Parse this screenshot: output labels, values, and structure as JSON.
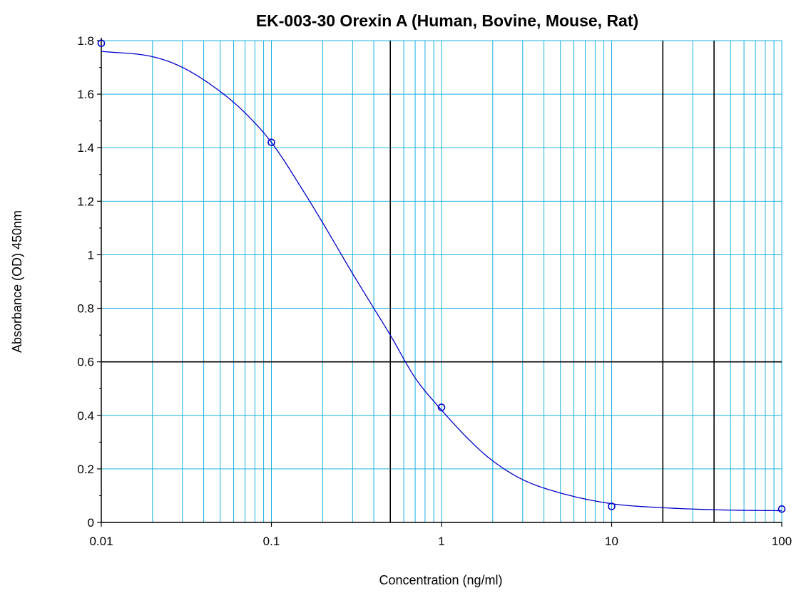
{
  "chart_data": {
    "type": "scatter",
    "title": "EK-003-30 Orexin A (Human, Bovine, Mouse, Rat)",
    "xlabel": "Concentration (ng/ml)",
    "ylabel": "Absorbance (OD) 450nm",
    "xscale": "log",
    "xlim": [
      0.01,
      100
    ],
    "ylim": [
      0,
      1.8
    ],
    "grid": true,
    "x_tick_labels": [
      "0.01",
      "0.1",
      "1",
      "10",
      "100"
    ],
    "y_tick_labels": [
      "0",
      "0.2",
      "0.4",
      "0.6",
      "0.8",
      "1",
      "1.2",
      "1.4",
      "1.6",
      "1.8"
    ],
    "reference_lines": {
      "y": [
        0.6
      ],
      "x": [
        0.5,
        20,
        40
      ]
    },
    "series": [
      {
        "kind": "points",
        "x": [
          0.01,
          0.1,
          1,
          10,
          100
        ],
        "y": [
          1.79,
          1.42,
          0.43,
          0.06,
          0.05
        ]
      },
      {
        "kind": "fit-curve",
        "x": [
          0.01,
          0.02,
          0.03,
          0.05,
          0.07,
          0.1,
          0.15,
          0.2,
          0.3,
          0.4,
          0.5,
          0.7,
          1,
          1.5,
          2,
          3,
          5,
          10,
          20,
          50,
          100
        ],
        "y": [
          1.76,
          1.74,
          1.7,
          1.61,
          1.53,
          1.42,
          1.25,
          1.12,
          0.93,
          0.8,
          0.7,
          0.54,
          0.42,
          0.3,
          0.23,
          0.16,
          0.11,
          0.07,
          0.055,
          0.046,
          0.044
        ]
      }
    ],
    "colors": {
      "grid": "#1ab0e0",
      "series": "#0000cc",
      "reference": "#000000",
      "axes": "#000000"
    }
  }
}
